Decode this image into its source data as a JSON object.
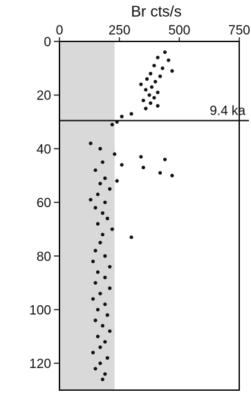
{
  "chart_data": {
    "type": "scatter",
    "xlabel": "Br cts/s",
    "ylabel": "",
    "xlim": [
      0,
      750
    ],
    "ylim": [
      0,
      130
    ],
    "x_ticks": [
      "0",
      "250",
      "500",
      "750"
    ],
    "x_tick_values": [
      0,
      250,
      500,
      750
    ],
    "y_ticks": [
      "0",
      "20",
      "40",
      "60",
      "80",
      "100",
      "120"
    ],
    "y_tick_values": [
      0,
      20,
      40,
      60,
      80,
      100,
      120
    ],
    "y_axis_inverted": true,
    "shaded_region": {
      "x_from": 0,
      "x_to": 230,
      "color": "#d9d9d9"
    },
    "annotation": {
      "label": "9.4 ka",
      "y": 29.5
    },
    "grid": false,
    "series": [
      {
        "color": "#111111",
        "points": [
          [
            440,
            4
          ],
          [
            410,
            6
          ],
          [
            455,
            7
          ],
          [
            395,
            9
          ],
          [
            430,
            10
          ],
          [
            470,
            11
          ],
          [
            380,
            12
          ],
          [
            420,
            13
          ],
          [
            365,
            14
          ],
          [
            400,
            15
          ],
          [
            340,
            16
          ],
          [
            385,
            17
          ],
          [
            360,
            18
          ],
          [
            410,
            19
          ],
          [
            375,
            20
          ],
          [
            395,
            21
          ],
          [
            350,
            22
          ],
          [
            380,
            23
          ],
          [
            410,
            24
          ],
          [
            360,
            25
          ],
          [
            300,
            27
          ],
          [
            260,
            28
          ],
          [
            240,
            30
          ],
          [
            220,
            31
          ],
          [
            130,
            38
          ],
          [
            170,
            40
          ],
          [
            230,
            42
          ],
          [
            340,
            43
          ],
          [
            440,
            44
          ],
          [
            180,
            45
          ],
          [
            260,
            46
          ],
          [
            350,
            47
          ],
          [
            150,
            48
          ],
          [
            420,
            49
          ],
          [
            470,
            50
          ],
          [
            190,
            51
          ],
          [
            240,
            52
          ],
          [
            170,
            53
          ],
          [
            210,
            55
          ],
          [
            160,
            57
          ],
          [
            130,
            59
          ],
          [
            190,
            60
          ],
          [
            150,
            62
          ],
          [
            180,
            64
          ],
          [
            200,
            66
          ],
          [
            160,
            68
          ],
          [
            220,
            70
          ],
          [
            180,
            72
          ],
          [
            300,
            73
          ],
          [
            170,
            75
          ],
          [
            150,
            78
          ],
          [
            190,
            80
          ],
          [
            140,
            82
          ],
          [
            210,
            84
          ],
          [
            160,
            86
          ],
          [
            190,
            88
          ],
          [
            150,
            90
          ],
          [
            210,
            92
          ],
          [
            170,
            94
          ],
          [
            140,
            96
          ],
          [
            190,
            98
          ],
          [
            160,
            100
          ],
          [
            200,
            102
          ],
          [
            150,
            104
          ],
          [
            180,
            106
          ],
          [
            210,
            108
          ],
          [
            160,
            110
          ],
          [
            190,
            112
          ],
          [
            170,
            114
          ],
          [
            140,
            116
          ],
          [
            200,
            118
          ],
          [
            170,
            120
          ],
          [
            150,
            122
          ],
          [
            190,
            124
          ],
          [
            180,
            126
          ]
        ]
      }
    ]
  }
}
